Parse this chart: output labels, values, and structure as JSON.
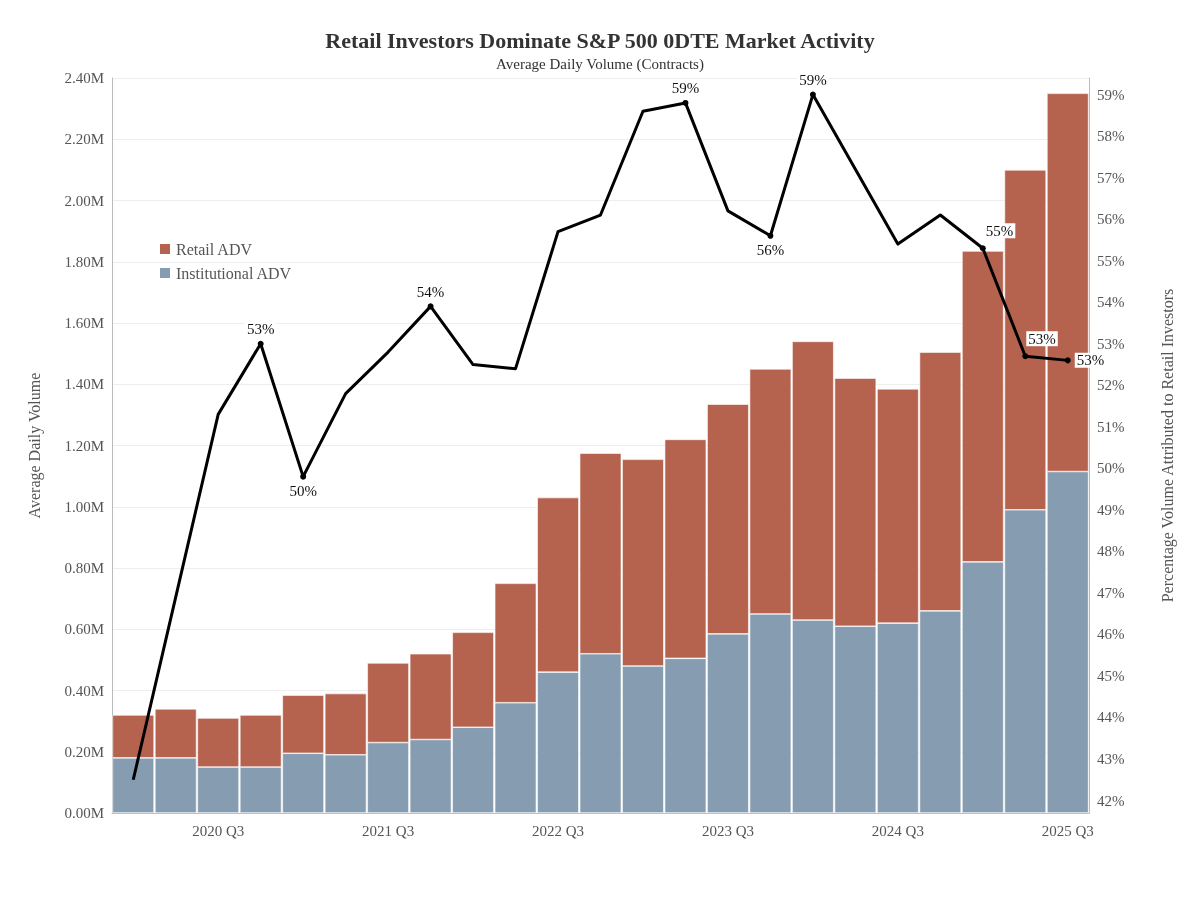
{
  "chart_data": {
    "type": "bar",
    "title": "Retail Investors Dominate S&P 500 0DTE Market Activity",
    "subtitle": "Average Daily Volume (Contracts)",
    "ylabel": "Average Daily Volume",
    "y2label": "Percentage Volume Attributed to Retail Investors",
    "categories": [
      null,
      null,
      "2020 Q3",
      null,
      null,
      null,
      "2021 Q3",
      null,
      null,
      null,
      "2022 Q3",
      null,
      null,
      null,
      "2023 Q3",
      null,
      null,
      null,
      "2024 Q3",
      null,
      null,
      null,
      "2025 Q3"
    ],
    "stacked": true,
    "series": [
      {
        "name": "Institutional ADV",
        "color": "#869cb0",
        "values": [
          0.18,
          0.18,
          0.15,
          0.15,
          0.195,
          0.19,
          0.23,
          0.24,
          0.28,
          0.36,
          0.46,
          0.52,
          0.48,
          0.505,
          0.585,
          0.65,
          0.63,
          0.61,
          0.62,
          0.66,
          0.82,
          0.99,
          1.115
        ]
      },
      {
        "name": "Retail ADV",
        "color": "#b5634f",
        "values": [
          0.14,
          0.16,
          0.16,
          0.17,
          0.19,
          0.2,
          0.26,
          0.28,
          0.31,
          0.39,
          0.57,
          0.655,
          0.675,
          0.715,
          0.75,
          0.8,
          0.91,
          0.81,
          0.765,
          0.845,
          1.015,
          1.11,
          1.235
        ]
      },
      {
        "type": "line",
        "axis": "y2",
        "color": "#000000",
        "values": [
          42.5,
          46.9,
          51.3,
          53.0,
          49.8,
          51.8,
          52.8,
          53.9,
          52.5,
          52.4,
          55.7,
          56.1,
          58.6,
          58.8,
          56.2,
          55.6,
          59.0,
          57.2,
          55.4,
          56.1,
          55.3,
          52.7,
          52.6
        ],
        "value_labels": [
          null,
          null,
          null,
          "53%",
          "50%",
          null,
          null,
          "54%",
          null,
          null,
          null,
          null,
          null,
          "59%",
          null,
          "56%",
          "59%",
          null,
          null,
          null,
          "55%",
          "53%",
          "53%"
        ]
      }
    ],
    "ylim": [
      0,
      2.4
    ],
    "yticks": [
      {
        "value": 0,
        "label": "0.00M"
      },
      {
        "value": 0.2,
        "label": "0.20M"
      },
      {
        "value": 0.4,
        "label": "0.40M"
      },
      {
        "value": 0.6,
        "label": "0.60M"
      },
      {
        "value": 0.8,
        "label": "0.80M"
      },
      {
        "value": 1.0,
        "label": "1.00M"
      },
      {
        "value": 1.2,
        "label": "1.20M"
      },
      {
        "value": 1.4,
        "label": "1.40M"
      },
      {
        "value": 1.6,
        "label": "1.60M"
      },
      {
        "value": 1.8,
        "label": "1.80M"
      },
      {
        "value": 2.0,
        "label": "2.00M"
      },
      {
        "value": 2.2,
        "label": "2.20M"
      },
      {
        "value": 2.4,
        "label": "2.40M"
      }
    ],
    "y2lim": [
      41.7,
      59.4
    ],
    "y2ticks": [
      {
        "value": 42,
        "label": "42%"
      },
      {
        "value": 43,
        "label": "43%"
      },
      {
        "value": 44,
        "label": "44%"
      },
      {
        "value": 45,
        "label": "45%"
      },
      {
        "value": 46,
        "label": "46%"
      },
      {
        "value": 47,
        "label": "47%"
      },
      {
        "value": 48,
        "label": "48%"
      },
      {
        "value": 49,
        "label": "49%"
      },
      {
        "value": 50,
        "label": "50%"
      },
      {
        "value": 51,
        "label": "51%"
      },
      {
        "value": 52,
        "label": "52%"
      },
      {
        "value": 53,
        "label": "53%"
      },
      {
        "value": 54,
        "label": "54%"
      },
      {
        "value": 55,
        "label": "55%"
      },
      {
        "value": 56,
        "label": "56%"
      },
      {
        "value": 57,
        "label": "57%"
      },
      {
        "value": 58,
        "label": "58%"
      },
      {
        "value": 59,
        "label": "59%"
      }
    ],
    "grid": "y",
    "legend": "top left"
  }
}
